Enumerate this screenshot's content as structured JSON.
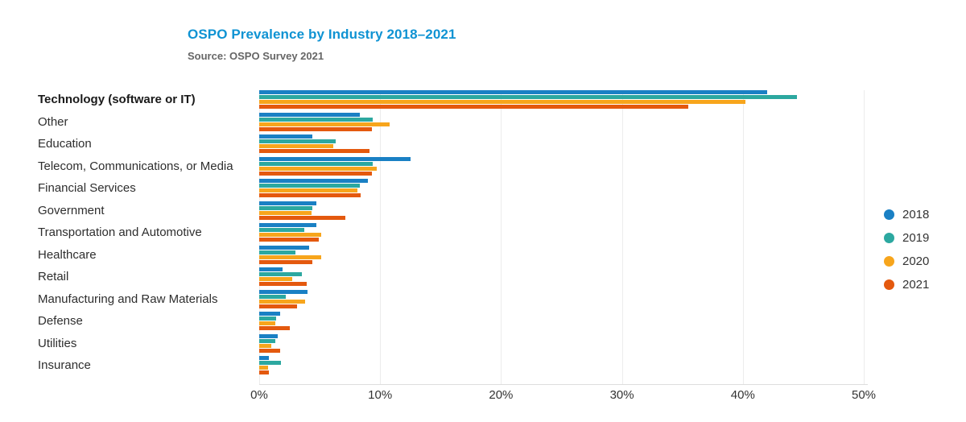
{
  "title": "OSPO Prevalence by Industry 2018–2021",
  "subtitle": "Source: OSPO Survey 2021",
  "colors": {
    "title_blue": "#0f93d3",
    "subtitle_gray": "#666666",
    "grid": "#ececec",
    "axis_text": "#333333"
  },
  "chart_data": {
    "type": "bar",
    "orientation": "horizontal",
    "title": "OSPO Prevalence by Industry 2018–2021",
    "subtitle": "Source: OSPO Survey 2021",
    "xlim": [
      0,
      50
    ],
    "xticks": [
      "0%",
      "10%",
      "20%",
      "30%",
      "40%",
      "50%"
    ],
    "grid": "vertical-light",
    "legend_position": "right",
    "bold_category": "Technology (software or IT)",
    "categories": [
      "Technology (software or IT)",
      "Other",
      "Education",
      "Telecom, Communications, or Media",
      "Financial Services",
      "Government",
      "Transportation and Automotive",
      "Healthcare",
      "Retail",
      "Manufacturing and Raw Materials",
      "Defense",
      "Utilities",
      "Insurance"
    ],
    "series": [
      {
        "name": "2018",
        "color": "#1a80c4",
        "values": [
          42.0,
          8.3,
          4.4,
          12.5,
          9.0,
          4.7,
          4.7,
          4.1,
          1.9,
          4.0,
          1.7,
          1.5,
          0.8
        ]
      },
      {
        "name": "2019",
        "color": "#2ca8a0",
        "values": [
          44.5,
          9.4,
          6.3,
          9.4,
          8.3,
          4.4,
          3.7,
          3.0,
          3.5,
          2.2,
          1.4,
          1.3,
          1.8
        ]
      },
      {
        "name": "2020",
        "color": "#f7a51c",
        "values": [
          40.2,
          10.8,
          6.1,
          9.7,
          8.1,
          4.3,
          5.1,
          5.1,
          2.7,
          3.8,
          1.3,
          1.0,
          0.7
        ]
      },
      {
        "name": "2021",
        "color": "#e4590e",
        "values": [
          35.5,
          9.3,
          9.1,
          9.3,
          8.4,
          7.1,
          4.9,
          4.4,
          3.9,
          3.1,
          2.5,
          1.7,
          0.8
        ]
      }
    ]
  }
}
